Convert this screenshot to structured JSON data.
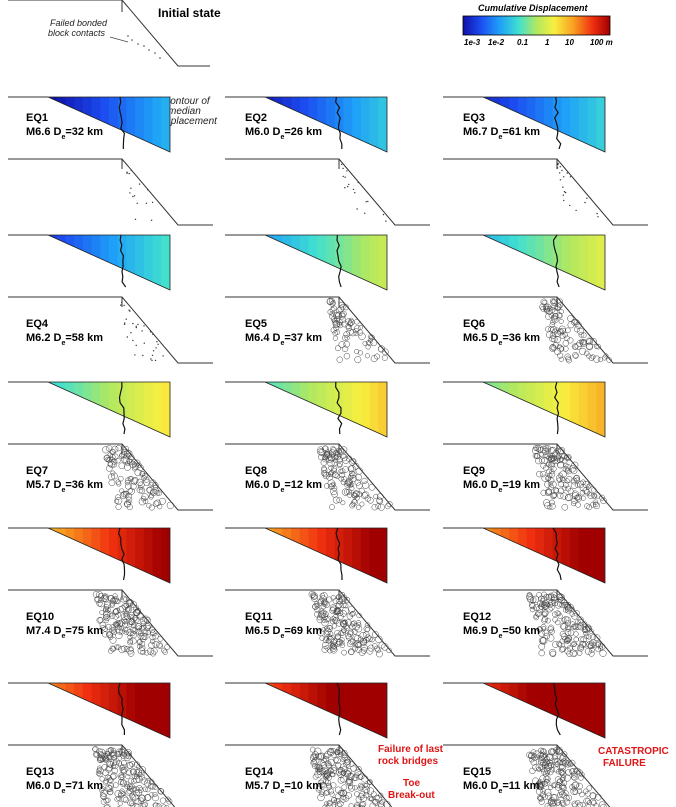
{
  "initial_state": {
    "title": "Initial state",
    "annotation": [
      "Failed bonded",
      "block contacts"
    ]
  },
  "colorbar": {
    "title": "Cumulative Displacement",
    "ticks": [
      "1e-3",
      "1e-2",
      "0.1",
      "1",
      "10",
      "100 m"
    ],
    "colors": [
      "#1010a8",
      "#1c4cf0",
      "#1ea0f8",
      "#40e0d0",
      "#b0e860",
      "#f8f040",
      "#f8a020",
      "#f03010",
      "#a00000"
    ]
  },
  "contour_annotation": [
    "Contour of",
    "median",
    "displacement"
  ],
  "earthquakes": [
    {
      "id": "EQ1",
      "mag": "M6.6",
      "dist": "=32 km",
      "level": 0.0,
      "damage": 0.02
    },
    {
      "id": "EQ2",
      "mag": "M6.0",
      "dist": "=26 km",
      "level": 0.04,
      "damage": 0.03
    },
    {
      "id": "EQ3",
      "mag": "M6.7",
      "dist": "=61 km",
      "level": 0.06,
      "damage": 0.05
    },
    {
      "id": "EQ4",
      "mag": "M6.2",
      "dist": "=58 km",
      "level": 0.1,
      "damage": 0.12
    },
    {
      "id": "EQ5",
      "mag": "M6.4",
      "dist": "=37 km",
      "level": 0.26,
      "damage": 0.4
    },
    {
      "id": "EQ6",
      "mag": "M6.5",
      "dist": "=36 km",
      "level": 0.3,
      "damage": 0.55
    },
    {
      "id": "EQ7",
      "mag": "M5.7",
      "dist": "=36 km",
      "level": 0.36,
      "damage": 0.6
    },
    {
      "id": "EQ8",
      "mag": "M6.0",
      "dist": "=12 km",
      "level": 0.4,
      "damage": 0.7
    },
    {
      "id": "EQ9",
      "mag": "M6.0",
      "dist": "=19 km",
      "level": 0.44,
      "damage": 0.8
    },
    {
      "id": "EQ10",
      "mag": "M7.4",
      "dist": "=75 km",
      "level": 0.68,
      "damage": 0.95
    },
    {
      "id": "EQ11",
      "mag": "M6.5",
      "dist": "=69 km",
      "level": 0.7,
      "damage": 0.95
    },
    {
      "id": "EQ12",
      "mag": "M6.9",
      "dist": "=50 km",
      "level": 0.72,
      "damage": 0.97
    },
    {
      "id": "EQ13",
      "mag": "M6.0",
      "dist": "=71 km",
      "level": 0.74,
      "damage": 1.0
    },
    {
      "id": "EQ14",
      "mag": "M5.7",
      "dist": "=10 km",
      "level": 0.8,
      "damage": 1.0
    },
    {
      "id": "EQ15",
      "mag": "M6.0",
      "dist": "=11 km",
      "level": 0.84,
      "damage": 1.0
    }
  ],
  "dist_symbol": "D",
  "dist_subscript": "e",
  "notes": {
    "eq14_top": [
      "Failure of last",
      "rock bridges"
    ],
    "eq14_bottom": [
      "Toe",
      "Break-out"
    ],
    "eq15": [
      "CATASTROPIC",
      "FAILURE"
    ]
  }
}
